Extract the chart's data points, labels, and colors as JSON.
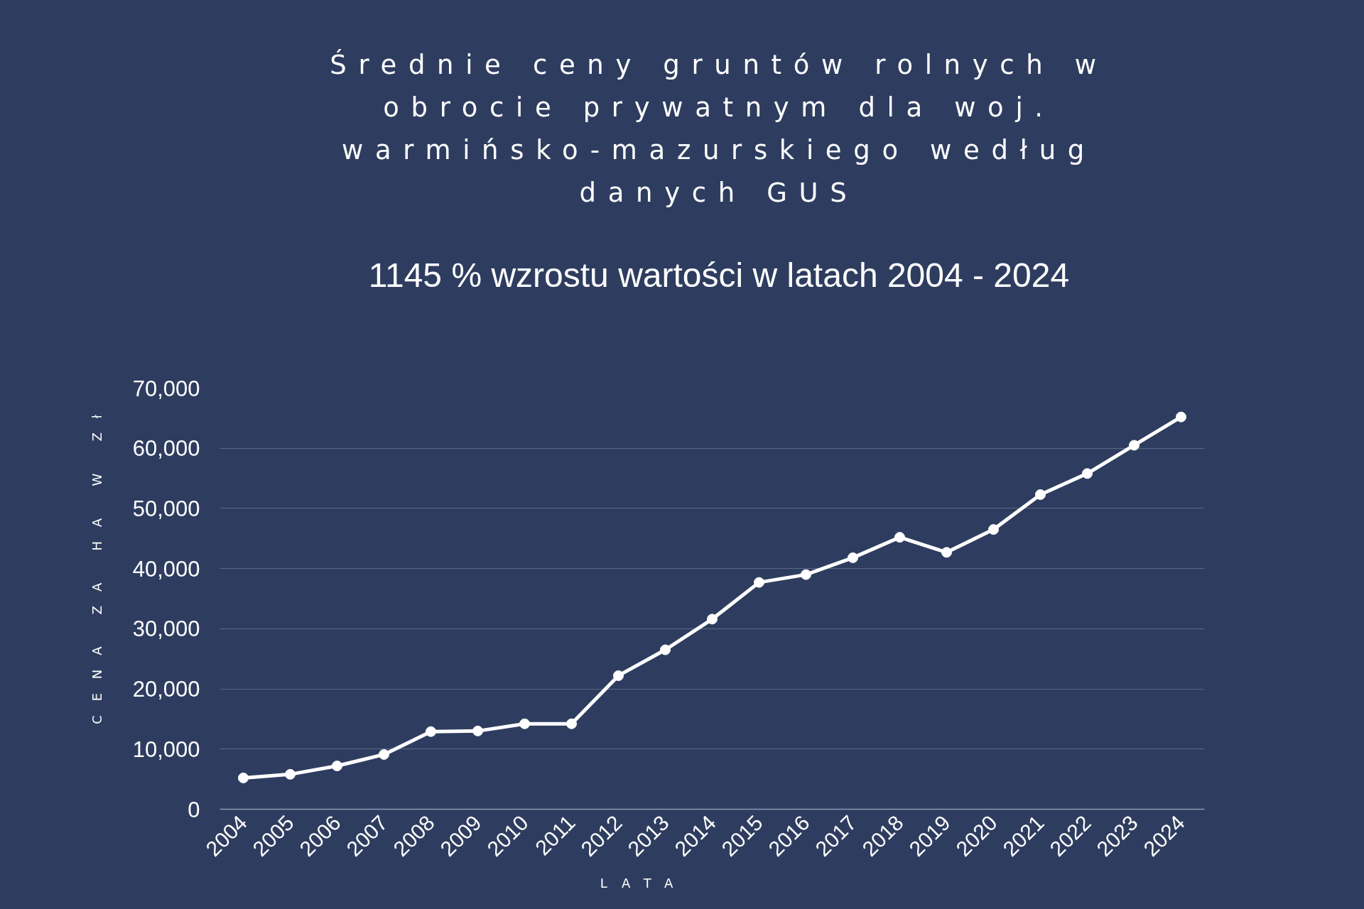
{
  "chart_data": {
    "type": "line",
    "title": "Średnie ceny gruntów rolnych w obrocie prywatnym dla woj. warmińsko-mazurskiego według danych GUS",
    "subtitle": "1145 % wzrostu wartości w latach 2004 - 2024",
    "xlabel": "LATA",
    "ylabel": "CENA ZA HA W Zł",
    "categories": [
      "2004",
      "2005",
      "2006",
      "2007",
      "2008",
      "2009",
      "2010",
      "2011",
      "2012",
      "2013",
      "2014",
      "2015",
      "2016",
      "2017",
      "2018",
      "2019",
      "2020",
      "2021",
      "2022",
      "2023",
      "2024"
    ],
    "series": [
      {
        "color": "#ffffff",
        "values": [
          5200,
          5800,
          7200,
          9100,
          12900,
          13000,
          14200,
          14200,
          22200,
          26500,
          31600,
          37700,
          39000,
          41800,
          45200,
          42700,
          46500,
          52300,
          55800,
          60500,
          65200
        ]
      }
    ],
    "ylim": [
      0,
      70000
    ],
    "yticks": [
      0,
      {
        "value": 10000,
        "label": "10,000"
      },
      {
        "value": 20000,
        "label": "20,000"
      },
      {
        "value": 30000,
        "label": "30,000"
      },
      {
        "value": 40000,
        "label": "40,000"
      },
      {
        "value": 50000,
        "label": "50,000"
      },
      {
        "value": 60000,
        "label": "60,000"
      },
      {
        "value": 70000,
        "label": "70,000"
      }
    ],
    "grid": "y",
    "marker": "circle",
    "line_style": "solid"
  }
}
